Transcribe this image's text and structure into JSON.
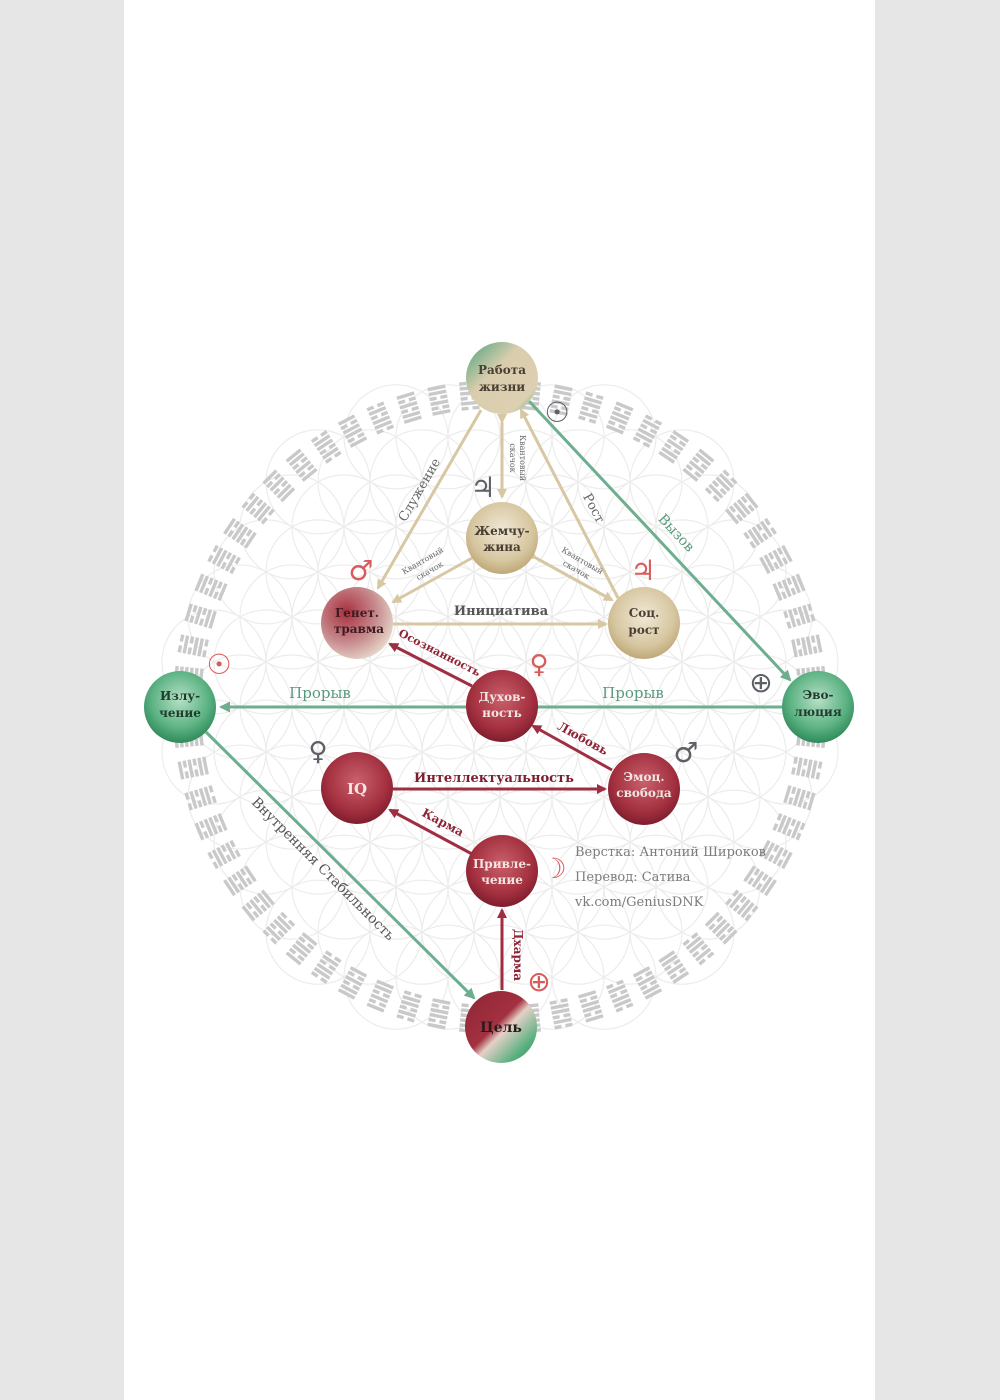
{
  "nodes": {
    "rabota": {
      "line1": "Работа",
      "line2": "жизни"
    },
    "zhemchuzhina": {
      "line1": "Жемчу-",
      "line2": "жина"
    },
    "genet": {
      "line1": "Генет.",
      "line2": "травма"
    },
    "socrost": {
      "line1": "Соц.",
      "line2": "рост"
    },
    "izluchenie": {
      "line1": "Излу-",
      "line2": "чение"
    },
    "dukhovnost": {
      "line1": "Духов-",
      "line2": "ность"
    },
    "evolyuciya": {
      "line1": "Эво-",
      "line2": "люция"
    },
    "iq": {
      "line1": "IQ"
    },
    "emoc": {
      "line1": "Эмоц.",
      "line2": "свобода"
    },
    "privlechenie": {
      "line1": "Привле-",
      "line2": "чение"
    },
    "cel": {
      "line1": "Цель"
    }
  },
  "edges": {
    "sluzhenie": "Служение",
    "rost": "Рост",
    "kvant_top_1": "Квантовый",
    "kvant_top_2": "скачок",
    "kvant_left_1": "Квантовый",
    "kvant_left_2": "скачок",
    "kvant_right_1": "Квантовый",
    "kvant_right_2": "скачок",
    "vyzov": "Вызов",
    "iniciativa": "Инициатива",
    "osoznannost": "Осознанность",
    "proryv_left": "Прорыв",
    "proryv_right": "Прорыв",
    "lyubov": "Любовь",
    "intellektualnost": "Интеллектуальность",
    "karma": "Карма",
    "vnutrennyaya": "Внутренняя Стабильность",
    "dkharma": "Дхарма"
  },
  "planets": {
    "sun_top": {
      "glyph": "☉",
      "color": "#5d6066"
    },
    "jupiter_center": {
      "glyph": "♃",
      "color": "#5d6066"
    },
    "mars_left": {
      "glyph": "♂",
      "color": "#d95c5c"
    },
    "jupiter_right": {
      "glyph": "♃",
      "color": "#d95c5c"
    },
    "venus_center": {
      "glyph": "♀",
      "color": "#d95c5c"
    },
    "sun_left": {
      "glyph": "☉",
      "color": "#d95c5c"
    },
    "earth_right": {
      "glyph": "⊕",
      "color": "#5d6066"
    },
    "venus_left": {
      "glyph": "♀",
      "color": "#5d6066"
    },
    "mars_right": {
      "glyph": "♂",
      "color": "#5d6066"
    },
    "moon": {
      "glyph": "☽",
      "color": "#d95c5c"
    },
    "earth_bottom": {
      "glyph": "⊕",
      "color": "#d95c5c"
    }
  },
  "credits": {
    "layout": "Верстка: Антоний Широков",
    "translation": "Перевод: Сатива",
    "link": "vk.com/GeniusDNK"
  },
  "colors": {
    "page_bg": "#e6e6e6",
    "sheet_bg": "#ffffff",
    "green": "#6cae8e",
    "green_node": "#3e9a6a",
    "beige": "#d7c7a3",
    "beige_node": "#c8b385",
    "red": "#9e2f42",
    "red_node": "#a32f42",
    "hexagram": "#c9c9c9"
  }
}
